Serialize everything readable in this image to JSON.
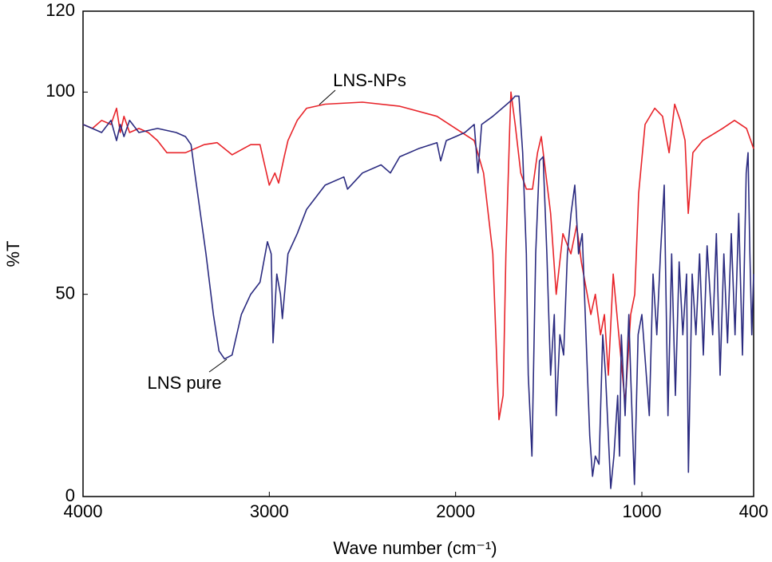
{
  "chart_data": {
    "type": "line",
    "x_label": "Wave number (cm⁻¹)",
    "y_label": "%T",
    "xlim": [
      4000,
      400
    ],
    "ylim": [
      0,
      120
    ],
    "xticks": [
      4000,
      3000,
      2000,
      1000,
      400
    ],
    "yticks": [
      0,
      50,
      100,
      120
    ],
    "series": [
      {
        "name": "LNS-NPs",
        "color": "#e8242a",
        "x": [
          4000,
          3950,
          3900,
          3850,
          3820,
          3800,
          3780,
          3750,
          3700,
          3650,
          3600,
          3550,
          3450,
          3350,
          3280,
          3200,
          3100,
          3050,
          3000,
          2970,
          2950,
          2920,
          2900,
          2850,
          2800,
          2700,
          2500,
          2300,
          2100,
          2000,
          1900,
          1850,
          1800,
          1780,
          1767,
          1745,
          1730,
          1710,
          1703,
          1680,
          1650,
          1620,
          1587,
          1560,
          1540,
          1490,
          1460,
          1424,
          1381,
          1350,
          1325,
          1274,
          1250,
          1222,
          1201,
          1180,
          1154,
          1124,
          1090,
          1060,
          1038,
          1017,
          983,
          931,
          889,
          854,
          824,
          794,
          768,
          751,
          726,
          674,
          567,
          503,
          438,
          400
        ],
        "values": [
          92,
          91,
          93,
          92,
          96,
          90,
          94,
          90,
          91,
          90,
          88,
          85,
          85,
          87,
          87.5,
          84.5,
          87,
          87,
          77,
          80,
          77.5,
          84,
          88,
          93,
          96,
          97,
          97.5,
          96.5,
          94,
          91,
          88,
          80,
          60,
          35,
          19,
          25,
          60,
          90,
          100,
          92,
          80,
          76,
          76,
          85,
          89,
          70,
          50,
          65,
          60,
          67,
          58,
          45,
          50,
          40,
          45,
          30,
          55,
          40,
          23,
          45,
          50,
          75,
          92,
          96,
          94,
          85,
          97,
          93,
          88,
          70,
          85,
          88,
          91,
          93,
          91,
          86
        ]
      },
      {
        "name": "LNS pure",
        "color": "#2b2b80",
        "x": [
          4000,
          3950,
          3900,
          3850,
          3820,
          3800,
          3780,
          3750,
          3700,
          3600,
          3500,
          3450,
          3420,
          3400,
          3370,
          3340,
          3300,
          3270,
          3240,
          3200,
          3150,
          3100,
          3050,
          3010,
          2990,
          2980,
          2960,
          2940,
          2930,
          2900,
          2850,
          2800,
          2700,
          2600,
          2580,
          2500,
          2400,
          2350,
          2300,
          2200,
          2100,
          2080,
          2050,
          2000,
          1950,
          1900,
          1880,
          1860,
          1800,
          1750,
          1700,
          1680,
          1660,
          1640,
          1620,
          1610,
          1590,
          1570,
          1550,
          1530,
          1510,
          1490,
          1470,
          1460,
          1440,
          1420,
          1400,
          1380,
          1360,
          1340,
          1320,
          1300,
          1280,
          1265,
          1250,
          1230,
          1210,
          1195,
          1180,
          1167,
          1150,
          1130,
          1120,
          1110,
          1090,
          1070,
          1060,
          1040,
          1020,
          1000,
          960,
          940,
          920,
          900,
          880,
          860,
          840,
          820,
          800,
          780,
          760,
          750,
          730,
          710,
          690,
          670,
          650,
          620,
          600,
          580,
          560,
          540,
          520,
          500,
          480,
          460,
          440,
          430,
          420,
          410,
          400
        ],
        "values": [
          92,
          91,
          90,
          93,
          88,
          92,
          89,
          93,
          90,
          91,
          90,
          89,
          87,
          80,
          70,
          60,
          45,
          36,
          34,
          35,
          45,
          50,
          53,
          63,
          60,
          38,
          55,
          50,
          44,
          60,
          65,
          71,
          77,
          79,
          76,
          80,
          82,
          80,
          84,
          86,
          87.5,
          83,
          88,
          89,
          90,
          92,
          80,
          92,
          94,
          96,
          98,
          99,
          99,
          85,
          60,
          30,
          10,
          60,
          83,
          84,
          60,
          30,
          45,
          20,
          40,
          35,
          60,
          70,
          77,
          60,
          65,
          40,
          15,
          5,
          10,
          8,
          40,
          30,
          15,
          2,
          10,
          25,
          10,
          40,
          20,
          45,
          30,
          3,
          40,
          45,
          20,
          55,
          40,
          60,
          77,
          20,
          60,
          25,
          58,
          40,
          55,
          6,
          55,
          40,
          60,
          35,
          62,
          40,
          65,
          30,
          60,
          38,
          65,
          40,
          70,
          35,
          80,
          85,
          60,
          40,
          55
        ]
      }
    ]
  }
}
